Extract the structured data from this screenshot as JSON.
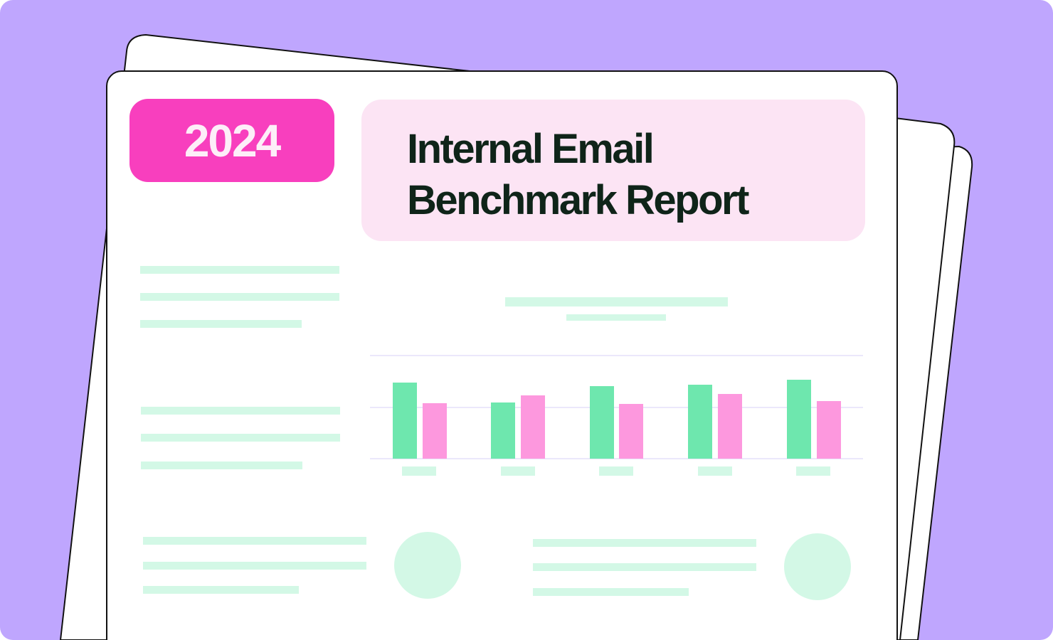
{
  "report": {
    "year": "2024",
    "title_line1": "Internal Email",
    "title_line2": "Benchmark Report"
  },
  "colors": {
    "background": "#bfa6fe",
    "badge": "#f83fbe",
    "title_box": "#fce4f4",
    "title_text": "#0f2419",
    "placeholder_lines": "#d3f8e6",
    "bar_green": "#6ee7ae",
    "bar_pink": "#fd98de"
  }
}
